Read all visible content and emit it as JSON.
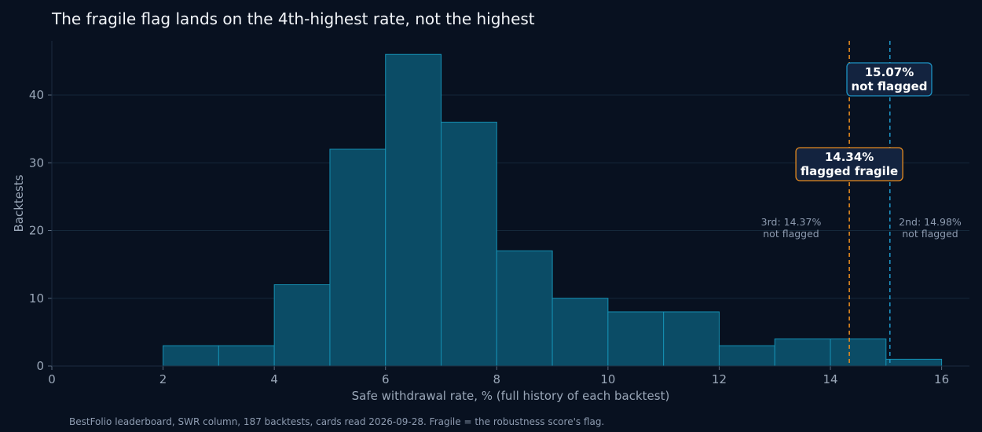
{
  "title": "The fragile flag lands on the 4th-highest rate, not the highest",
  "footer": "BestFolio leaderboard, SWR column, 187 backtests, cards read 2026-09-28. Fragile = the robustness score's flag.",
  "colors": {
    "background": "#081120",
    "bar_fill": "#0b4c66",
    "bar_edge": "#1590b3",
    "grid": "#15283a",
    "flagged_line": "#e58a1f",
    "unflagged_line": "#1d93c4",
    "callout_bg": "#13233f"
  },
  "chart_data": {
    "type": "bar",
    "xlabel": "Safe withdrawal rate, % (full history of each backtest)",
    "ylabel": "Backtests",
    "xlim": [
      0,
      16.5
    ],
    "ylim": [
      0,
      48
    ],
    "x_ticks": [
      0,
      2,
      4,
      6,
      8,
      10,
      12,
      14,
      16
    ],
    "y_ticks": [
      0,
      10,
      20,
      30,
      40
    ],
    "grid": "horizontal",
    "bins": [
      {
        "start": 2,
        "end": 3,
        "count": 3
      },
      {
        "start": 3,
        "end": 4,
        "count": 3
      },
      {
        "start": 4,
        "end": 5,
        "count": 12
      },
      {
        "start": 5,
        "end": 6,
        "count": 32
      },
      {
        "start": 6,
        "end": 7,
        "count": 46
      },
      {
        "start": 7,
        "end": 8,
        "count": 36
      },
      {
        "start": 8,
        "end": 9,
        "count": 17
      },
      {
        "start": 9,
        "end": 10,
        "count": 10
      },
      {
        "start": 10,
        "end": 11,
        "count": 8
      },
      {
        "start": 11,
        "end": 12,
        "count": 8
      },
      {
        "start": 12,
        "end": 13,
        "count": 3
      },
      {
        "start": 13,
        "end": 14,
        "count": 4
      },
      {
        "start": 14,
        "end": 15,
        "count": 4
      },
      {
        "start": 15,
        "end": 16,
        "count": 1
      }
    ],
    "markers": [
      {
        "x": 14.34,
        "line1": "14.34%",
        "line2": "flagged fragile",
        "flagged": true
      },
      {
        "x": 15.07,
        "line1": "15.07%",
        "line2": "not flagged",
        "flagged": false
      }
    ],
    "annotations": [
      {
        "x": 14.37,
        "line1": "3rd: 14.37%",
        "line2": "not flagged"
      },
      {
        "x": 14.98,
        "line1": "2nd: 14.98%",
        "line2": "not flagged"
      }
    ]
  }
}
